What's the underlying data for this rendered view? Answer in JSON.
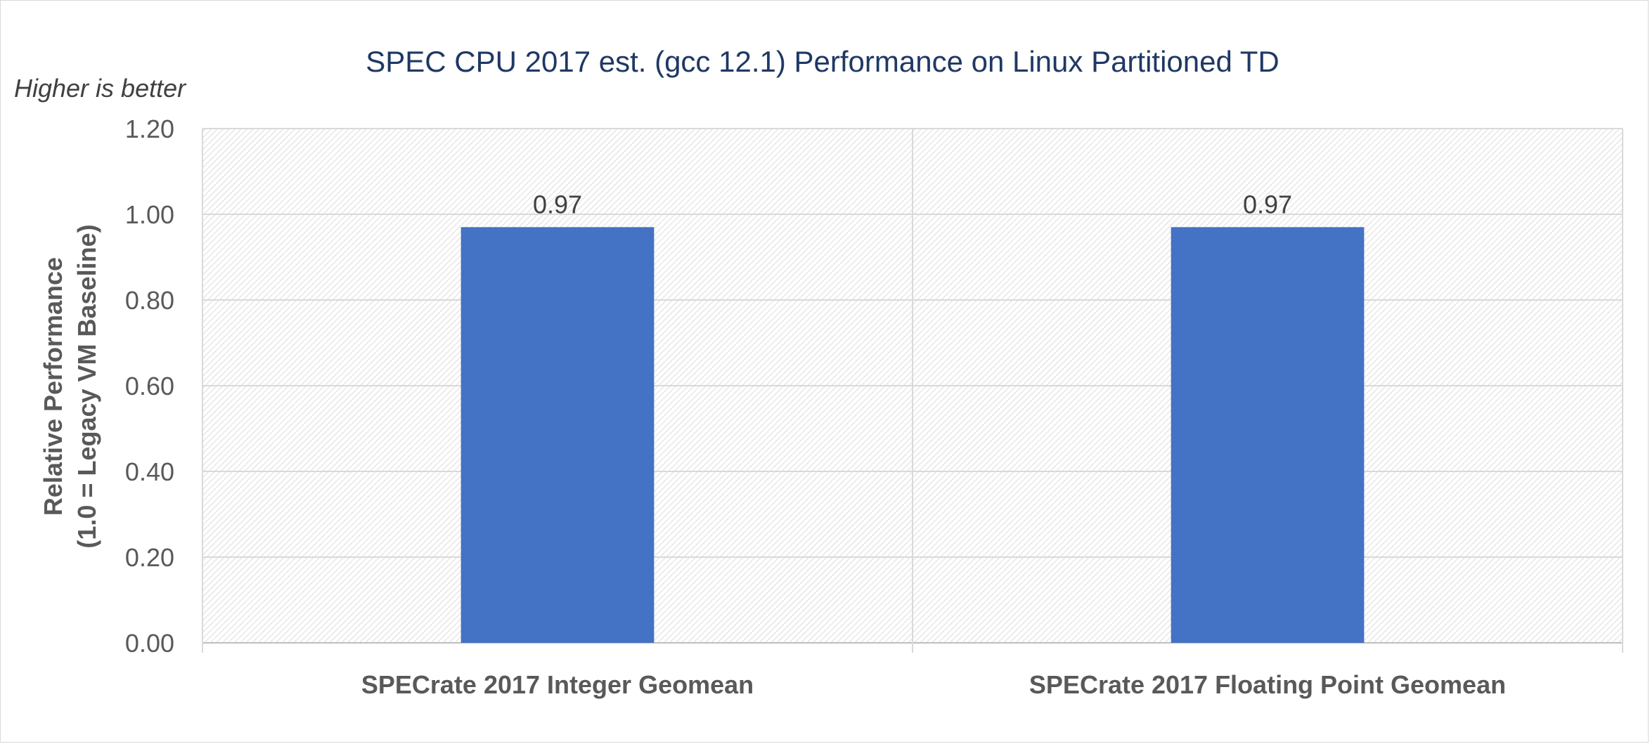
{
  "chart_data": {
    "type": "bar",
    "title": "SPEC CPU 2017 est. (gcc 12.1) Performance on Linux Partitioned TD",
    "annotation": "Higher is better",
    "ylabel_line1": "Relative Performance",
    "ylabel_line2": "(1.0 =  Legacy VM Baseline)",
    "xlabel": "",
    "categories": [
      "SPECrate 2017 Integer Geomean",
      "SPECrate 2017 Floating Point Geomean"
    ],
    "values": [
      0.97,
      0.97
    ],
    "data_labels": [
      "0.97",
      "0.97"
    ],
    "ylim": [
      0,
      1.2
    ],
    "yticks": [
      "0.00",
      "0.20",
      "0.40",
      "0.60",
      "0.80",
      "1.00",
      "1.20"
    ],
    "grid": true,
    "bar_color": "#4472c4"
  }
}
